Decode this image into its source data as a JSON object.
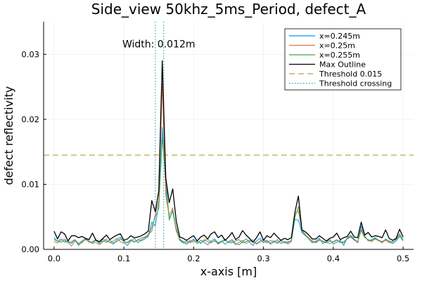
{
  "chart_data": {
    "type": "line",
    "title": "Side_view 50khz_5ms_Period, defect_A",
    "xlabel": "x-axis [m]",
    "ylabel": "defect reflectivity",
    "xlim": [
      -0.015,
      0.515
    ],
    "ylim": [
      0.0,
      0.035
    ],
    "xticks": [
      0.0,
      0.1,
      0.2,
      0.3,
      0.4,
      0.5
    ],
    "xtick_labels": [
      "0.0",
      "0.1",
      "0.2",
      "0.3",
      "0.4",
      "0.5"
    ],
    "yticks": [
      0.0,
      0.01,
      0.02,
      0.03
    ],
    "ytick_labels": [
      "0.00",
      "0.01",
      "0.02",
      "0.03"
    ],
    "grid": true,
    "legend_position": "top-right",
    "x": [
      0.0,
      0.005,
      0.01,
      0.015,
      0.02,
      0.025,
      0.03,
      0.035,
      0.04,
      0.045,
      0.05,
      0.055,
      0.06,
      0.065,
      0.07,
      0.075,
      0.08,
      0.085,
      0.09,
      0.095,
      0.1,
      0.105,
      0.11,
      0.115,
      0.12,
      0.125,
      0.13,
      0.135,
      0.14,
      0.145,
      0.15,
      0.155,
      0.16,
      0.165,
      0.17,
      0.175,
      0.18,
      0.185,
      0.19,
      0.195,
      0.2,
      0.205,
      0.21,
      0.215,
      0.22,
      0.225,
      0.23,
      0.235,
      0.24,
      0.245,
      0.25,
      0.255,
      0.26,
      0.265,
      0.27,
      0.275,
      0.28,
      0.285,
      0.29,
      0.295,
      0.3,
      0.305,
      0.31,
      0.315,
      0.32,
      0.325,
      0.33,
      0.335,
      0.34,
      0.345,
      0.35,
      0.355,
      0.36,
      0.365,
      0.37,
      0.375,
      0.38,
      0.385,
      0.39,
      0.395,
      0.4,
      0.405,
      0.41,
      0.415,
      0.42,
      0.425,
      0.43,
      0.435,
      0.44,
      0.445,
      0.45,
      0.455,
      0.46,
      0.465,
      0.47,
      0.475,
      0.48,
      0.485,
      0.49,
      0.495,
      0.5
    ],
    "series": [
      {
        "name": "x=0.245m",
        "color": "#009AFA",
        "style": "solid",
        "values": [
          0.0018,
          0.0012,
          0.0016,
          0.0011,
          0.0013,
          0.0009,
          0.0015,
          0.0006,
          0.0012,
          0.0017,
          0.0012,
          0.001,
          0.0014,
          0.0009,
          0.0016,
          0.0013,
          0.0011,
          0.0008,
          0.0015,
          0.0019,
          0.0011,
          0.0006,
          0.0013,
          0.0017,
          0.001,
          0.0015,
          0.0018,
          0.0021,
          0.0042,
          0.0036,
          0.007,
          0.0188,
          0.0095,
          0.0048,
          0.0058,
          0.003,
          0.0014,
          0.001,
          0.0008,
          0.0012,
          0.0016,
          0.0009,
          0.0014,
          0.0011,
          0.0007,
          0.0013,
          0.0016,
          0.001,
          0.0013,
          0.0008,
          0.0012,
          0.0015,
          0.0009,
          0.0007,
          0.0012,
          0.0016,
          0.0011,
          0.0006,
          0.0013,
          0.0017,
          0.001,
          0.0014,
          0.0008,
          0.0011,
          0.0015,
          0.0009,
          0.0012,
          0.001,
          0.0014,
          0.0046,
          0.0045,
          0.0026,
          0.0021,
          0.0016,
          0.001,
          0.0013,
          0.0017,
          0.0009,
          0.0012,
          0.0015,
          0.0008,
          0.0011,
          0.0014,
          0.0006,
          0.0018,
          0.0022,
          0.0016,
          0.001,
          0.0036,
          0.0021,
          0.0013,
          0.0015,
          0.0018,
          0.0014,
          0.001,
          0.0016,
          0.0012,
          0.0009,
          0.0013,
          0.002,
          0.0013
        ]
      },
      {
        "name": "x=0.25m",
        "color": "#E26F46",
        "style": "solid",
        "values": [
          0.0012,
          0.001,
          0.0014,
          0.0016,
          0.0011,
          0.0005,
          0.0013,
          0.0008,
          0.001,
          0.0015,
          0.0013,
          0.0009,
          0.0011,
          0.0007,
          0.0012,
          0.0016,
          0.001,
          0.0013,
          0.0017,
          0.0012,
          0.0009,
          0.0011,
          0.0015,
          0.0012,
          0.0014,
          0.0018,
          0.0019,
          0.0023,
          0.0028,
          0.0054,
          0.0076,
          0.0255,
          0.0082,
          0.0052,
          0.0064,
          0.0028,
          0.0016,
          0.0012,
          0.001,
          0.0014,
          0.0011,
          0.0013,
          0.0009,
          0.0015,
          0.0012,
          0.001,
          0.0014,
          0.0008,
          0.0012,
          0.0016,
          0.001,
          0.0013,
          0.0007,
          0.0011,
          0.0014,
          0.0009,
          0.0012,
          0.0015,
          0.0008,
          0.0011,
          0.0013,
          0.001,
          0.0014,
          0.0012,
          0.0009,
          0.0013,
          0.0011,
          0.0008,
          0.0012,
          0.0055,
          0.0059,
          0.003,
          0.0023,
          0.0015,
          0.0012,
          0.001,
          0.0014,
          0.0013,
          0.0011,
          0.0009,
          0.0012,
          0.0015,
          0.001,
          0.0012,
          0.0016,
          0.0019,
          0.0014,
          0.0011,
          0.0031,
          0.002,
          0.0014,
          0.0012,
          0.0016,
          0.0013,
          0.0011,
          0.0014,
          0.001,
          0.0012,
          0.0015,
          0.0022,
          0.0016
        ]
      },
      {
        "name": "x=0.255m",
        "color": "#3EA44E",
        "style": "solid",
        "values": [
          0.0015,
          0.0013,
          0.0011,
          0.0014,
          0.001,
          0.0012,
          0.0015,
          0.0009,
          0.0013,
          0.0016,
          0.0011,
          0.0012,
          0.0015,
          0.001,
          0.0013,
          0.0011,
          0.0014,
          0.001,
          0.0012,
          0.0016,
          0.0013,
          0.001,
          0.0014,
          0.0011,
          0.0015,
          0.0013,
          0.0016,
          0.002,
          0.0034,
          0.005,
          0.0063,
          0.0172,
          0.011,
          0.0045,
          0.006,
          0.0033,
          0.0015,
          0.0011,
          0.0013,
          0.001,
          0.0014,
          0.0012,
          0.001,
          0.0013,
          0.0016,
          0.0011,
          0.0013,
          0.0009,
          0.0012,
          0.0014,
          0.0011,
          0.001,
          0.0013,
          0.0015,
          0.001,
          0.0012,
          0.0014,
          0.0011,
          0.0009,
          0.0013,
          0.0015,
          0.0012,
          0.001,
          0.0013,
          0.0011,
          0.0014,
          0.001,
          0.0012,
          0.0013,
          0.0049,
          0.0066,
          0.0028,
          0.0022,
          0.0018,
          0.0013,
          0.0011,
          0.0015,
          0.0012,
          0.001,
          0.0013,
          0.0011,
          0.0014,
          0.0012,
          0.001,
          0.0017,
          0.002,
          0.0015,
          0.0012,
          0.0029,
          0.0018,
          0.0015,
          0.0013,
          0.0017,
          0.0014,
          0.0012,
          0.0015,
          0.0013,
          0.0011,
          0.0016,
          0.0024,
          0.0015
        ]
      },
      {
        "name": "Max Outline",
        "color": "#000000",
        "style": "solid",
        "values": [
          0.0028,
          0.0016,
          0.0027,
          0.0024,
          0.0013,
          0.0021,
          0.0021,
          0.0018,
          0.002,
          0.0017,
          0.0015,
          0.0025,
          0.0014,
          0.0012,
          0.0017,
          0.0022,
          0.0015,
          0.0019,
          0.0022,
          0.0024,
          0.0014,
          0.0016,
          0.0021,
          0.0018,
          0.0019,
          0.0021,
          0.0024,
          0.0028,
          0.0075,
          0.0058,
          0.009,
          0.029,
          0.011,
          0.0072,
          0.0093,
          0.0044,
          0.0019,
          0.0017,
          0.0014,
          0.0018,
          0.0021,
          0.0013,
          0.0019,
          0.0022,
          0.0016,
          0.0024,
          0.0027,
          0.0018,
          0.0022,
          0.0014,
          0.0019,
          0.0026,
          0.0015,
          0.0019,
          0.0029,
          0.0022,
          0.0017,
          0.0011,
          0.0018,
          0.0027,
          0.0014,
          0.0021,
          0.0018,
          0.0025,
          0.0019,
          0.0014,
          0.0017,
          0.0015,
          0.0018,
          0.0057,
          0.0082,
          0.003,
          0.0027,
          0.0022,
          0.0016,
          0.0016,
          0.0021,
          0.0017,
          0.0013,
          0.0017,
          0.0019,
          0.0025,
          0.0015,
          0.0018,
          0.002,
          0.0028,
          0.0019,
          0.0018,
          0.0042,
          0.0022,
          0.0026,
          0.0019,
          0.0021,
          0.002,
          0.0018,
          0.003,
          0.0017,
          0.0014,
          0.0017,
          0.0031,
          0.0019
        ]
      }
    ],
    "threshold": {
      "name": "Threshold 0.015",
      "value": 0.0145,
      "color": "#B7A040",
      "style": "dashed"
    },
    "crossings": {
      "name": "Threshold crossing",
      "x": [
        0.145,
        0.157
      ],
      "color": "#1BA5B6",
      "style": "dotted"
    },
    "annotation": {
      "text": "Width: 0.012m",
      "x": 0.15,
      "y": 0.0316
    }
  }
}
